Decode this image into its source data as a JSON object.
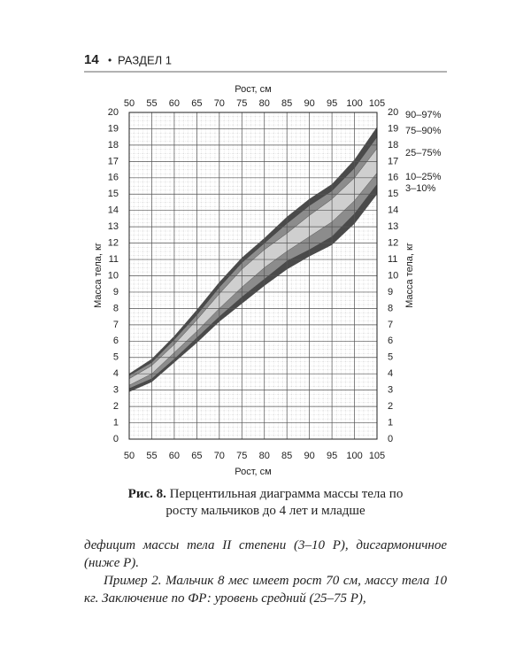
{
  "header": {
    "page_number": "14",
    "bullet": "•",
    "section": "РАЗДЕЛ 1"
  },
  "chart_data": {
    "type": "percentile-bands",
    "x_label": "Рост, см",
    "y_label": "Масса тела, кг",
    "x": [
      50,
      55,
      60,
      65,
      70,
      75,
      80,
      85,
      90,
      95,
      100,
      105
    ],
    "series": [
      {
        "values": [
          2.9,
          3.5,
          4.7,
          5.9,
          7.2,
          8.3,
          9.4,
          10.4,
          11.2,
          11.9,
          13.2,
          15.0
        ]
      },
      {
        "values": [
          3.1,
          3.7,
          4.9,
          6.2,
          7.5,
          8.7,
          9.8,
          10.9,
          11.6,
          12.4,
          13.8,
          15.6
        ]
      },
      {
        "values": [
          3.3,
          4.0,
          5.3,
          6.6,
          8.0,
          9.3,
          10.5,
          11.5,
          12.4,
          13.3,
          14.6,
          16.3
        ]
      },
      {
        "values": [
          3.7,
          4.5,
          5.8,
          7.3,
          8.9,
          10.4,
          11.6,
          12.6,
          13.7,
          14.7,
          16.0,
          17.8
        ]
      },
      {
        "values": [
          3.9,
          4.7,
          6.1,
          7.6,
          9.3,
          10.8,
          12.0,
          13.2,
          14.3,
          15.2,
          16.6,
          18.5
        ]
      },
      {
        "values": [
          4.0,
          4.9,
          6.3,
          7.9,
          9.6,
          11.1,
          12.3,
          13.6,
          14.7,
          15.6,
          17.1,
          19.1
        ]
      }
    ],
    "bands": [
      {
        "name": "3–10%",
        "color": "#4a4a4a"
      },
      {
        "name": "10–25%",
        "color": "#8c8c8c"
      },
      {
        "name": "25–75%",
        "color": "#cfcfcf"
      },
      {
        "name": "75–90%",
        "color": "#8c8c8c"
      },
      {
        "name": "90–97%",
        "color": "#4a4a4a"
      }
    ],
    "xlim": [
      50,
      105
    ],
    "xticks": [
      50,
      55,
      60,
      65,
      70,
      75,
      80,
      85,
      90,
      95,
      100,
      105
    ],
    "ylim": [
      0,
      20
    ],
    "yticks": [
      0,
      1,
      2,
      3,
      4,
      5,
      6,
      7,
      8,
      9,
      10,
      11,
      12,
      13,
      14,
      15,
      16,
      17,
      18,
      19,
      20
    ],
    "grid": true
  },
  "caption": {
    "label": "Рис. 8.",
    "text": "Перцентильная диаграмма массы тела по росту мальчиков до 4 лет и младше"
  },
  "paragraphs": [
    "дефицит массы тела II степени (3–10 Р), дисгармоничное (ниже Р).",
    "Пример 2. Мальчик 8 мес имеет рост 70 см, массу тела 10 кг. Заключение по ФР: уровень средний (25–75 Р),"
  ]
}
